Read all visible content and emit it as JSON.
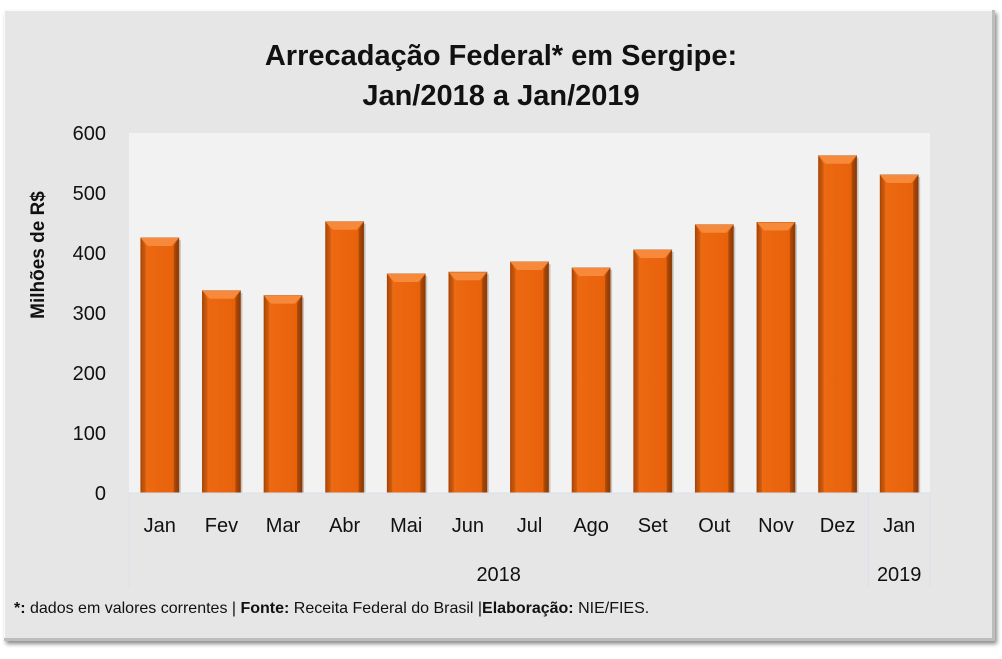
{
  "chart_data": {
    "type": "bar",
    "title": "Arrecadação Federal* em Sergipe:",
    "subtitle": "Jan/2018 a Jan/2019",
    "xlabel": "",
    "ylabel": "Milhões de R$",
    "ylim": [
      0,
      600
    ],
    "yticks": [
      0,
      100,
      200,
      300,
      400,
      500,
      600
    ],
    "grid": false,
    "legend": "none",
    "categories": [
      "Jan",
      "Fev",
      "Mar",
      "Abr",
      "Mai",
      "Jun",
      "Jul",
      "Ago",
      "Set",
      "Out",
      "Nov",
      "Dez",
      "Jan"
    ],
    "groups": [
      {
        "label": "2018",
        "count": 12
      },
      {
        "label": "2019",
        "count": 1
      }
    ],
    "series": [
      {
        "name": "Arrecadação Federal",
        "color": "#e8620a",
        "values": [
          425,
          337,
          329,
          452,
          365,
          368,
          385,
          375,
          405,
          447,
          451,
          562,
          530
        ]
      }
    ]
  },
  "footnote": {
    "asterisk_label": "*:",
    "asterisk_text": " dados em valores correntes | ",
    "source_label": "Fonte:",
    "source_text": " Receita Federal do Brasil |",
    "author_label": "Elaboração:",
    "author_text": " NIE/FIES."
  },
  "colors": {
    "bar": "#e8620a",
    "plot_bg": "#f2f2f2",
    "chart_bg": "#e6e6e6"
  }
}
